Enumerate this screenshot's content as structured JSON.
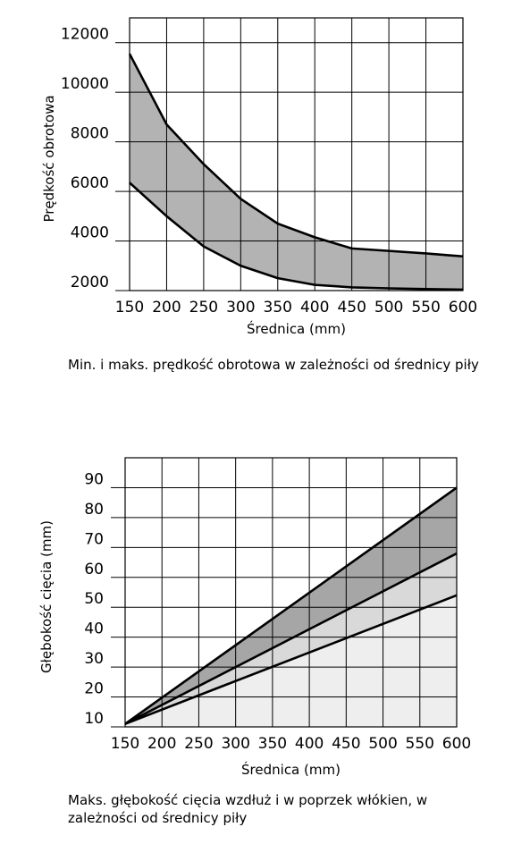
{
  "chart_data": [
    {
      "type": "area",
      "title": "",
      "xlabel": "Średnica (mm)",
      "ylabel": "Prędkość obrotowa",
      "x_ticks": [
        150,
        200,
        250,
        300,
        350,
        400,
        450,
        500,
        550,
        600
      ],
      "y_ticks": [
        2000,
        4000,
        6000,
        8000,
        10000,
        12000
      ],
      "xlim": [
        150,
        600
      ],
      "ylim": [
        2000,
        13000
      ],
      "grid": true,
      "fill_color": "#b3b3b3",
      "series": [
        {
          "name": "",
          "x": [
            150,
            200,
            250,
            300,
            350,
            400,
            450,
            500,
            550,
            600
          ],
          "values": [
            11550,
            8700,
            7100,
            5700,
            4700,
            4150,
            3700,
            3600,
            3500,
            3380
          ]
        },
        {
          "name": "",
          "x": [
            150,
            200,
            250,
            300,
            350,
            400,
            450,
            500,
            550,
            600
          ],
          "values": [
            6350,
            5000,
            3780,
            3000,
            2500,
            2230,
            2130,
            2090,
            2060,
            2040
          ]
        }
      ],
      "caption": "Min. i maks. prędkość obrotowa w zależności od średnicy piły"
    },
    {
      "type": "area",
      "title": "",
      "xlabel": "Średnica (mm)",
      "ylabel": "Głębokość cięcia (mm)",
      "x_ticks": [
        150,
        200,
        250,
        300,
        350,
        400,
        450,
        500,
        550,
        600
      ],
      "y_ticks": [
        10,
        20,
        30,
        40,
        50,
        60,
        70,
        80,
        90
      ],
      "xlim": [
        150,
        600
      ],
      "ylim": [
        10,
        100
      ],
      "grid": true,
      "fill_colors": [
        "#a6a6a6",
        "#d9d9d9",
        "#eeeeee"
      ],
      "series": [
        {
          "name": "",
          "x": [
            150,
            600
          ],
          "values": [
            11,
            90
          ]
        },
        {
          "name": "",
          "x": [
            150,
            600
          ],
          "values": [
            11,
            68
          ]
        },
        {
          "name": "",
          "x": [
            150,
            600
          ],
          "values": [
            11,
            54
          ]
        }
      ],
      "caption": "Maks. głębokość cięcia wzdłuż i w poprzek włókien, w zależności od średnicy piły"
    }
  ]
}
